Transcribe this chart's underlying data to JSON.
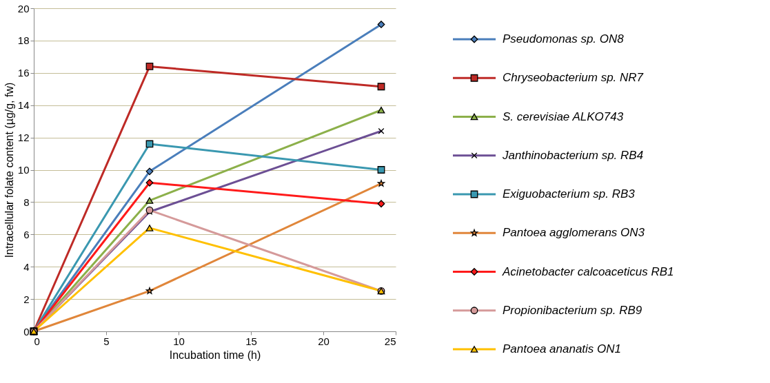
{
  "chart_data": {
    "type": "line",
    "xlabel": "Incubation time (h)",
    "ylabel": "Intracellular folate content (µg/g, fw)",
    "x": [
      0,
      8,
      24
    ],
    "xlim": [
      0,
      25
    ],
    "xticks": [
      0,
      5,
      10,
      15,
      20,
      25
    ],
    "ylim": [
      0,
      20
    ],
    "yticks": [
      0,
      2,
      4,
      6,
      8,
      10,
      12,
      14,
      16,
      18,
      20
    ],
    "grid": "y",
    "legend": "right",
    "line_style": "solid",
    "series": [
      {
        "name": "Pseudomonas sp. ON8",
        "color": "#4a7ebb",
        "marker": "diamond",
        "values": [
          0,
          9.9,
          19.0
        ]
      },
      {
        "name": "Chryseobacterium sp. NR7",
        "color": "#be2a26",
        "marker": "square",
        "values": [
          0,
          16.4,
          15.15
        ]
      },
      {
        "name": "S. cerevisiae ALKO743",
        "color": "#8cb04a",
        "marker": "triangle",
        "values": [
          0,
          8.1,
          13.7
        ]
      },
      {
        "name": "Janthinobacterium sp. RB4",
        "color": "#6c4f94",
        "marker": "cross",
        "values": [
          0,
          7.4,
          12.4
        ]
      },
      {
        "name": "Exiguobacterium sp. RB3",
        "color": "#3a98b0",
        "marker": "square",
        "values": [
          0,
          11.6,
          10.0
        ]
      },
      {
        "name": "Pantoea agglomerans ON3",
        "color": "#e0863a",
        "marker": "star",
        "values": [
          0,
          2.5,
          9.15
        ]
      },
      {
        "name": "Acinetobacter calcoaceticus RB1",
        "color": "#ff1a1a",
        "marker": "diamond",
        "values": [
          0,
          9.2,
          7.9
        ]
      },
      {
        "name": "Propionibacterium sp. RB9",
        "color": "#d59a9a",
        "marker": "circle",
        "values": [
          0,
          7.5,
          2.5
        ]
      },
      {
        "name": "Pantoea ananatis ON1",
        "color": "#ffc000",
        "marker": "triangle",
        "values": [
          0,
          6.4,
          2.5
        ]
      }
    ]
  }
}
